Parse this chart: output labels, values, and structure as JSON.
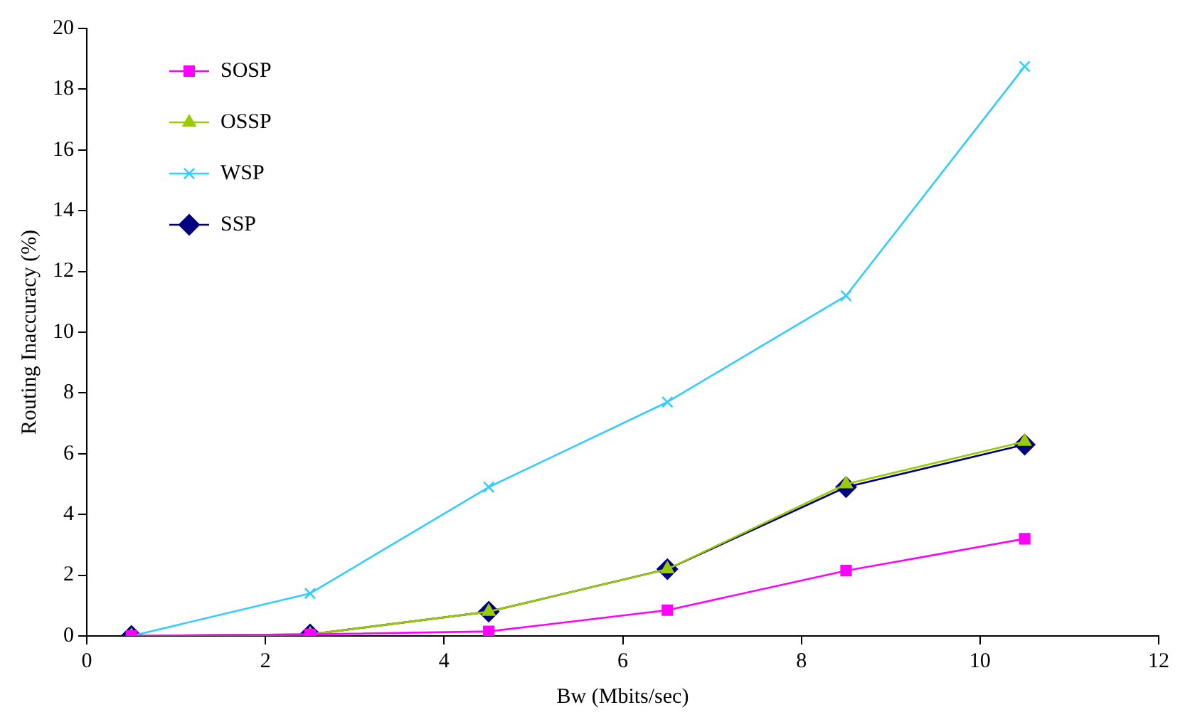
{
  "chart_data": {
    "type": "line",
    "xlabel": "Bw (Mbits/sec)",
    "ylabel": "Routing Inaccuracy (%)",
    "x": [
      0.5,
      2.5,
      4.5,
      6.5,
      8.5,
      10.5
    ],
    "series": [
      {
        "name": "SOSP",
        "color": "#ff00ff",
        "marker": "square",
        "values": [
          0,
          0.05,
          0.15,
          0.85,
          2.15,
          3.2
        ]
      },
      {
        "name": "OSSP",
        "color": "#99cc00",
        "marker": "triangle",
        "values": [
          0,
          0.05,
          0.8,
          2.2,
          5.0,
          6.4
        ]
      },
      {
        "name": "WSP",
        "color": "#33ccff",
        "marker": "cross",
        "values": [
          0,
          1.4,
          4.9,
          7.7,
          11.2,
          18.75
        ]
      },
      {
        "name": "SSP",
        "color": "#000080",
        "marker": "diamond",
        "values": [
          0,
          0.05,
          0.8,
          2.2,
          4.9,
          6.3
        ]
      }
    ],
    "xlim": [
      0,
      12
    ],
    "xticks": [
      0,
      2,
      4,
      6,
      8,
      10,
      12
    ],
    "ylim": [
      0,
      20
    ],
    "yticks": [
      0,
      2,
      4,
      6,
      8,
      10,
      12,
      14,
      16,
      18,
      20
    ],
    "grid": false,
    "legend": "top left",
    "line_style": "solid"
  }
}
